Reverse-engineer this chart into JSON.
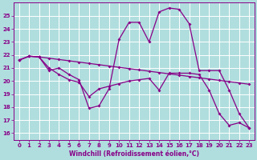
{
  "background_color": "#b0dede",
  "line_color": "#880088",
  "grid_color": "#ffffff",
  "xlabel": "Windchill (Refroidissement éolien,°C)",
  "x_ticks": [
    0,
    1,
    2,
    3,
    4,
    5,
    6,
    7,
    8,
    9,
    10,
    11,
    12,
    13,
    14,
    15,
    16,
    17,
    18,
    19,
    20,
    21,
    22,
    23
  ],
  "y_ticks": [
    16,
    17,
    18,
    19,
    20,
    21,
    22,
    23,
    24,
    25
  ],
  "ylim": [
    15.5,
    26.0
  ],
  "xlim": [
    -0.5,
    23.5
  ],
  "s1_x": [
    0,
    1,
    2,
    3,
    4,
    5,
    6,
    7,
    8,
    9,
    10,
    11,
    12,
    13,
    14,
    15,
    16,
    17,
    18,
    19,
    20,
    21,
    22,
    23
  ],
  "s1_y": [
    21.6,
    21.9,
    21.85,
    21.75,
    21.65,
    21.55,
    21.45,
    21.35,
    21.25,
    21.15,
    21.05,
    20.95,
    20.85,
    20.75,
    20.65,
    20.55,
    20.45,
    20.35,
    20.25,
    20.15,
    20.05,
    19.95,
    19.85,
    19.75
  ],
  "s2_x": [
    0,
    1,
    2,
    3,
    4,
    5,
    6,
    7,
    8,
    9,
    10,
    11,
    12,
    13,
    14,
    15,
    16,
    17,
    18,
    19,
    20,
    21,
    22,
    23
  ],
  "s2_y": [
    21.6,
    21.9,
    21.85,
    21.0,
    20.5,
    20.1,
    19.9,
    18.8,
    19.4,
    19.6,
    19.8,
    20.0,
    20.1,
    20.2,
    19.3,
    20.6,
    20.6,
    20.6,
    20.5,
    19.3,
    17.5,
    16.6,
    16.8,
    16.4
  ],
  "s3_x": [
    0,
    1,
    2,
    3,
    4,
    5,
    6,
    7,
    8,
    9,
    10,
    11,
    12,
    13,
    14,
    15,
    16,
    17,
    18,
    19,
    20,
    21,
    22,
    23
  ],
  "s3_y": [
    21.6,
    21.9,
    21.85,
    20.8,
    21.0,
    20.5,
    20.1,
    17.9,
    18.1,
    19.4,
    23.2,
    24.5,
    24.5,
    23.0,
    25.3,
    25.6,
    25.5,
    24.4,
    20.8,
    20.8,
    20.8,
    19.3,
    17.5,
    16.4
  ]
}
